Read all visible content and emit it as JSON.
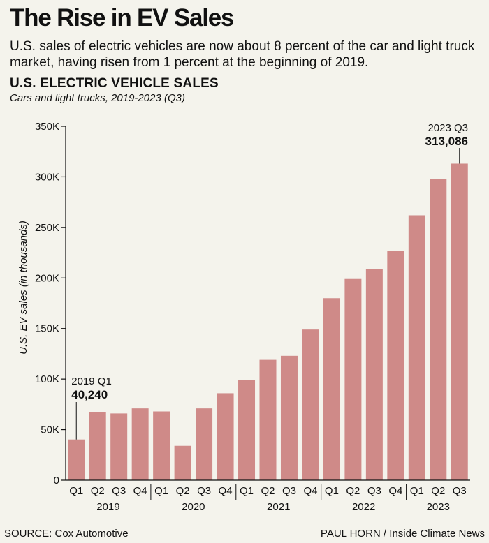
{
  "header": {
    "title": "The Rise in EV Sales",
    "subtitle": "U.S. sales of electric vehicles are now about 8 percent of the car and light truck market, having risen from 1 percent at the beginning of 2019."
  },
  "chart_data": {
    "type": "bar",
    "title": "U.S. ELECTRIC VEHICLE SALES",
    "subtitle": "Cars and light trucks, 2019-2023 (Q3)",
    "ylabel": "U.S. EV sales (in thousands)",
    "xlabel": "",
    "ylim": [
      0,
      350
    ],
    "yticks": [
      0,
      50,
      100,
      150,
      200,
      250,
      300,
      350
    ],
    "ytick_labels": [
      "0",
      "50K",
      "100K",
      "150K",
      "200K",
      "250K",
      "300K",
      "350K"
    ],
    "grid": false,
    "bar_color": "#cf8a88",
    "categories": [
      "Q1",
      "Q2",
      "Q3",
      "Q4",
      "Q1",
      "Q2",
      "Q3",
      "Q4",
      "Q1",
      "Q2",
      "Q3",
      "Q4",
      "Q1",
      "Q2",
      "Q3",
      "Q4",
      "Q1",
      "Q2",
      "Q3"
    ],
    "years": [
      {
        "label": "2019",
        "start": 0,
        "count": 4
      },
      {
        "label": "2020",
        "start": 4,
        "count": 4
      },
      {
        "label": "2021",
        "start": 8,
        "count": 4
      },
      {
        "label": "2022",
        "start": 12,
        "count": 4
      },
      {
        "label": "2023",
        "start": 16,
        "count": 3
      }
    ],
    "values": [
      40.24,
      67,
      66,
      71,
      68,
      34,
      71,
      86,
      99,
      119,
      123,
      149,
      180,
      199,
      209,
      227,
      262,
      298,
      313.086
    ],
    "annotations": [
      {
        "index": 0,
        "label": "2019 Q1",
        "value": "40,240"
      },
      {
        "index": 18,
        "label": "2023 Q3",
        "value": "313,086"
      }
    ]
  },
  "footer": {
    "source": "SOURCE: Cox Automotive",
    "credit": "PAUL HORN / Inside Climate News"
  }
}
